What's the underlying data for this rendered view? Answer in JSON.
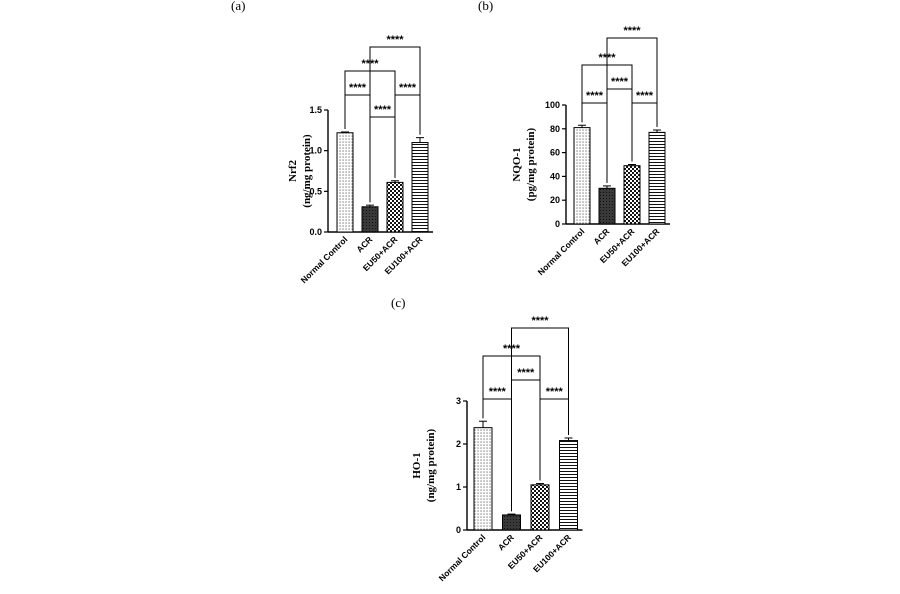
{
  "chart_data": [
    {
      "panel": "(a)",
      "type": "bar",
      "title": "",
      "ylabel_main": "Nrf2",
      "ylabel_sub": "(ng/mg protein)",
      "xlabel": "",
      "categories": [
        "Normal Control",
        "ACR",
        "EU50+ACR",
        "EU100+ACR"
      ],
      "values": [
        1.22,
        0.31,
        0.61,
        1.1
      ],
      "errors": [
        0.01,
        0.02,
        0.02,
        0.06
      ],
      "ylim": [
        0,
        1.5
      ],
      "yticks": [
        "0.0",
        "0.5",
        "1.0",
        "1.5"
      ],
      "patterns": [
        "dots",
        "dark",
        "checker",
        "hlines"
      ],
      "significance": [
        {
          "from": 0,
          "to": 1,
          "label": "****"
        },
        {
          "from": 1,
          "to": 2,
          "label": "****"
        },
        {
          "from": 2,
          "to": 3,
          "label": "****"
        },
        {
          "from": 0,
          "to": 2,
          "label": "****"
        },
        {
          "from": 1,
          "to": 3,
          "label": "****"
        }
      ]
    },
    {
      "panel": "(b)",
      "type": "bar",
      "title": "",
      "ylabel_main": "NQO-1",
      "ylabel_sub": "(pg/mg protein)",
      "xlabel": "",
      "categories": [
        "Normal Control",
        "ACR",
        "EU50+ACR",
        "EU100+ACR"
      ],
      "values": [
        81,
        30,
        49,
        77
      ],
      "errors": [
        2,
        2,
        1,
        2
      ],
      "ylim": [
        0,
        100
      ],
      "yticks": [
        "0",
        "20",
        "40",
        "60",
        "80",
        "100"
      ],
      "patterns": [
        "dots",
        "dark",
        "checker",
        "hlines"
      ],
      "significance": [
        {
          "from": 0,
          "to": 1,
          "label": "****"
        },
        {
          "from": 2,
          "to": 3,
          "label": "****"
        },
        {
          "from": 1,
          "to": 2,
          "label": "****"
        },
        {
          "from": 0,
          "to": 2,
          "label": "****"
        },
        {
          "from": 1,
          "to": 3,
          "label": "****"
        }
      ]
    },
    {
      "panel": "(c)",
      "type": "bar",
      "title": "",
      "ylabel_main": "HO-1",
      "ylabel_sub": "(ng/mg protein)",
      "xlabel": "",
      "categories": [
        "Normal Control",
        "ACR",
        "EU50+ACR",
        "EU100+ACR"
      ],
      "values": [
        2.38,
        0.35,
        1.05,
        2.08
      ],
      "errors": [
        0.15,
        0.02,
        0.03,
        0.06
      ],
      "ylim": [
        0,
        3
      ],
      "yticks": [
        "0",
        "1",
        "2",
        "3"
      ],
      "patterns": [
        "dots",
        "dark",
        "checker",
        "hlines"
      ],
      "significance": [
        {
          "from": 0,
          "to": 1,
          "label": "****"
        },
        {
          "from": 2,
          "to": 3,
          "label": "****"
        },
        {
          "from": 1,
          "to": 2,
          "label": "****"
        },
        {
          "from": 0,
          "to": 2,
          "label": "****"
        },
        {
          "from": 1,
          "to": 3,
          "label": "****"
        }
      ]
    }
  ]
}
